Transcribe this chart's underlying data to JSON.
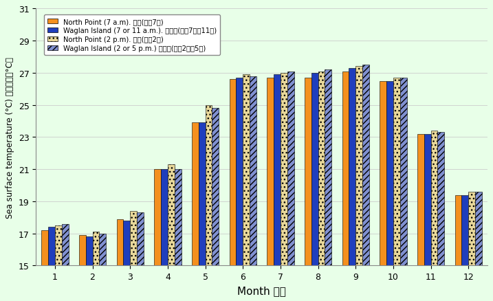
{
  "months": [
    1,
    2,
    3,
    4,
    5,
    6,
    7,
    8,
    9,
    10,
    11,
    12
  ],
  "north_point_am": [
    17.2,
    16.9,
    17.9,
    21.0,
    23.9,
    26.6,
    26.7,
    26.7,
    27.1,
    26.5,
    23.2,
    19.4
  ],
  "waglan_am": [
    17.4,
    16.8,
    17.8,
    21.0,
    23.9,
    26.7,
    26.9,
    27.0,
    27.3,
    26.5,
    23.2,
    19.4
  ],
  "north_point_pm": [
    17.5,
    17.1,
    18.4,
    21.3,
    25.0,
    26.9,
    27.0,
    27.1,
    27.4,
    26.7,
    23.4,
    19.6
  ],
  "waglan_pm": [
    17.6,
    17.0,
    18.3,
    21.0,
    24.8,
    26.8,
    27.1,
    27.2,
    27.5,
    26.7,
    23.3,
    19.6
  ],
  "ylim": [
    15,
    31
  ],
  "yticks": [
    15,
    17,
    19,
    21,
    23,
    25,
    27,
    29,
    31
  ],
  "color_np_am": "#F4901E",
  "color_wi_am": "#1F3EBD",
  "color_np_pm": "#E8D89A",
  "color_wi_pm": "#8090D0",
  "background_color": "#E8FFE8",
  "plot_bg": "#E8FFE8",
  "xlabel": "Month 月份",
  "ylabel": "Sea surface temperature (°C) 海面溫度（°C）",
  "legend1": "North Point (7 a.m). 北角(上午7時)",
  "legend2": "Waglan Island (7 or 11 a.m.). 橫琅島(上午7時或11時)",
  "legend3": "North Point (2 p.m). 北角(下午2時)",
  "legend4": "Waglan Island (2 or 5 p.m.) 橫琅島(下午2時或5時)"
}
